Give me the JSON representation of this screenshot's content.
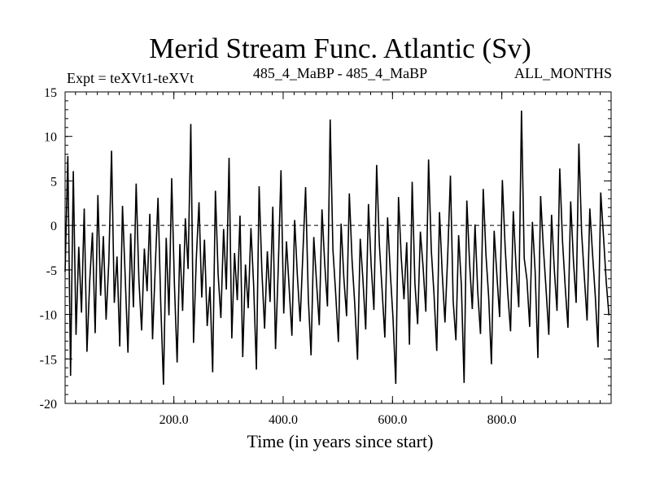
{
  "chart_data": {
    "type": "line",
    "title": "Merid Stream Func. Atlantic (Sv)",
    "subtitle_left": "Expt = teXVt1-teXVt",
    "subtitle_center": "485_4_MaBP - 485_4_MaBP",
    "subtitle_right": "ALL_MONTHS",
    "xlabel": "Time (in years since start)",
    "ylabel": "",
    "xlim": [
      1,
      1000
    ],
    "ylim": [
      -20,
      15
    ],
    "x_ticks": [
      {
        "value": 200,
        "label": "200.0"
      },
      {
        "value": 400,
        "label": "400.0"
      },
      {
        "value": 600,
        "label": "600.0"
      },
      {
        "value": 800,
        "label": "800.0"
      }
    ],
    "y_ticks": [
      {
        "value": 15,
        "label": "15"
      },
      {
        "value": 10,
        "label": "10"
      },
      {
        "value": 5,
        "label": "5"
      },
      {
        "value": 0,
        "label": "0"
      },
      {
        "value": -5,
        "label": "-5"
      },
      {
        "value": -10,
        "label": "-10"
      },
      {
        "value": -15,
        "label": "-15"
      },
      {
        "value": -20,
        "label": "-20"
      }
    ],
    "x_minor_step": 20,
    "y_minor_step": 1,
    "reference_line": {
      "y": 0,
      "style": "dashed"
    },
    "grid": false,
    "line_color": "#000000",
    "series": [
      {
        "name": "",
        "x_start": 1,
        "x_step": 5,
        "values": [
          -5.2,
          7.8,
          -16.9,
          6.1,
          -12.3,
          -2.4,
          -9.8,
          1.9,
          -14.2,
          -6.3,
          -0.8,
          -12.1,
          3.4,
          -7.9,
          -1.2,
          -10.6,
          -4.1,
          8.4,
          -8.7,
          -3.5,
          -13.6,
          2.2,
          -5.8,
          -14.3,
          -0.9,
          -9.2,
          4.7,
          -6.1,
          -11.8,
          -2.6,
          -7.4,
          1.3,
          -12.8,
          -4.6,
          3.1,
          -8.8,
          -17.9,
          -1.4,
          -10.1,
          5.3,
          -6.6,
          -15.4,
          -2.1,
          -9.6,
          0.8,
          -4.9,
          11.4,
          -13.2,
          -3.8,
          2.6,
          -8.1,
          -1.6,
          -11.3,
          -6.9,
          -16.5,
          3.9,
          -5.5,
          -10.4,
          -0.4,
          -7.2,
          7.6,
          -12.7,
          -3.1,
          -8.4,
          1.1,
          -14.8,
          -4.4,
          -9.3,
          -0.3,
          -6.8,
          -16.2,
          4.4,
          -5.1,
          -11.6,
          -2.9,
          -8.6,
          2.1,
          -13.9,
          -4.8,
          6.2,
          -9.9,
          -1.8,
          -7.1,
          -12.4,
          0.6,
          -5.7,
          -10.8,
          -3.2,
          4.3,
          -8.2,
          -14.6,
          -1.3,
          -6.4,
          -11.2,
          1.8,
          -4.3,
          -9.1,
          11.9,
          -2.7,
          -7.6,
          -13.1,
          0.2,
          -5.9,
          -10.2,
          3.6,
          -3.9,
          -8.9,
          -15.1,
          -1.5,
          -6.2,
          -11.7,
          2.4,
          -4.5,
          -9.5,
          6.8,
          -2.2,
          -7.3,
          -12.6,
          0.9,
          -5.3,
          -10.5,
          -17.8,
          3.2,
          -3.6,
          -8.3,
          -1.9,
          -13.4,
          4.9,
          -6.5,
          -11.1,
          -0.7,
          -4.7,
          -9.7,
          7.4,
          -2.8,
          -7.8,
          -14.1,
          1.5,
          -5.4,
          -10.9,
          -3.4,
          5.6,
          -8.5,
          -12.9,
          -1.1,
          -6.7,
          -17.7,
          2.8,
          -4.2,
          -9.4,
          0.1,
          -7.5,
          -12.2,
          4.1,
          -3.3,
          -8.1,
          -15.6,
          -0.6,
          -5.6,
          -10.3,
          5.1,
          -2.3,
          -7.7,
          -11.9,
          1.6,
          -4.6,
          -9.2,
          12.9,
          -3.7,
          -6.1,
          -11.4,
          0.4,
          -5.2,
          -14.9,
          3.3,
          -2.5,
          -7.2,
          -12.3,
          1.2,
          -4.9,
          -9.6,
          6.4,
          -1.7,
          -6.9,
          -11.5,
          2.7,
          -3.9,
          -8.7,
          9.2,
          -0.8,
          -5.8,
          -10.7,
          1.9,
          -3.2,
          -7.9,
          -13.7,
          3.7,
          -1.2,
          -6.3,
          -10.1
        ]
      }
    ]
  }
}
